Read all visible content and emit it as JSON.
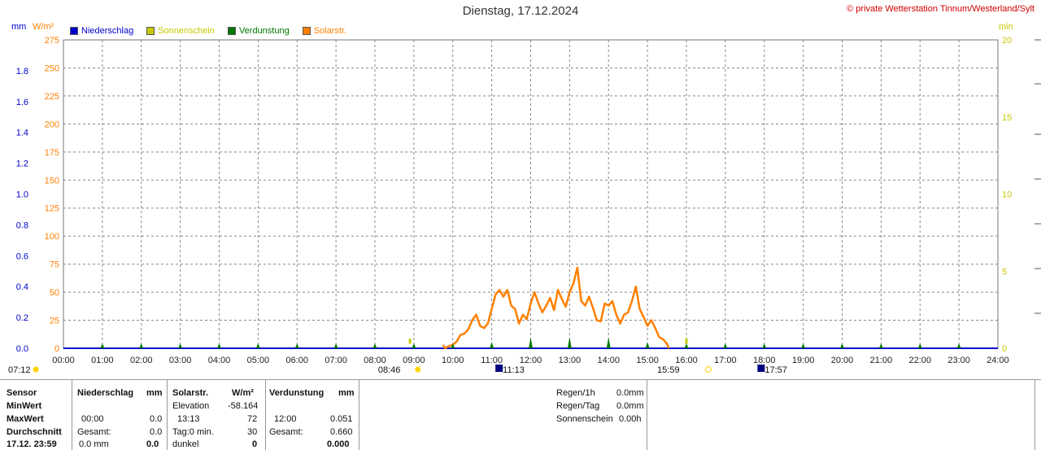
{
  "title": "Dienstag, 17.12.2024",
  "copyright": "© private Wetterstation Tinnum/Westerland/Sylt",
  "units": {
    "mm": "mm",
    "wm2": "W/m²",
    "min": "min"
  },
  "colors": {
    "niederschlag": "#0000cc",
    "sonnenschein": "#c8c800",
    "verdunstung": "#007700",
    "solar": "#ff8000",
    "grid": "#888888",
    "axis_mm": "#0000cc",
    "axis_wm2": "#ff8000",
    "axis_min": "#c8c800"
  },
  "legend": [
    {
      "label": "Niederschlag",
      "color": "#0000cc",
      "text_color": "#0000cc"
    },
    {
      "label": "Sonnenschein",
      "color": "#c8c800",
      "text_color": "#c8c800"
    },
    {
      "label": "Verdunstung",
      "color": "#007700",
      "text_color": "#007700"
    },
    {
      "label": "Solarstr.",
      "color": "#ff8000",
      "text_color": "#ff8000"
    }
  ],
  "chart_data": {
    "type": "line",
    "title": "Dienstag, 17.12.2024",
    "x_ticks": [
      "00:00",
      "01:00",
      "02:00",
      "03:00",
      "04:00",
      "05:00",
      "06:00",
      "07:00",
      "08:00",
      "09:00",
      "10:00",
      "11:00",
      "12:00",
      "13:00",
      "14:00",
      "15:00",
      "16:00",
      "17:00",
      "18:00",
      "19:00",
      "20:00",
      "21:00",
      "22:00",
      "23:00",
      "24:00"
    ],
    "y_left_mm": {
      "ticks": [
        "0.0",
        "0.2",
        "0.4",
        "0.6",
        "0.8",
        "1.0",
        "1.2",
        "1.4",
        "1.6",
        "1.8"
      ],
      "range": [
        0,
        2.0
      ]
    },
    "y_left_wm2": {
      "ticks": [
        "0",
        "25",
        "50",
        "75",
        "100",
        "125",
        "150",
        "175",
        "200",
        "225",
        "250",
        "275"
      ],
      "range": [
        0,
        275
      ]
    },
    "y_right_min": {
      "ticks": [
        "0",
        "5",
        "10",
        "15",
        "20"
      ],
      "range": [
        0,
        20
      ]
    },
    "series": [
      {
        "name": "Solarstr.",
        "unit": "W/m²",
        "x_hours": [
          9.75,
          9.8,
          9.9,
          10.0,
          10.1,
          10.2,
          10.3,
          10.4,
          10.5,
          10.6,
          10.7,
          10.8,
          10.9,
          11.0,
          11.1,
          11.2,
          11.3,
          11.4,
          11.5,
          11.6,
          11.7,
          11.8,
          11.9,
          12.0,
          12.1,
          12.2,
          12.3,
          12.4,
          12.5,
          12.6,
          12.7,
          12.8,
          12.9,
          13.0,
          13.1,
          13.2,
          13.3,
          13.4,
          13.5,
          13.6,
          13.7,
          13.8,
          13.9,
          14.0,
          14.1,
          14.2,
          14.3,
          14.4,
          14.5,
          14.6,
          14.7,
          14.8,
          14.9,
          15.0,
          15.1,
          15.2,
          15.3,
          15.4,
          15.5,
          15.55
        ],
        "values": [
          3,
          0,
          2,
          3,
          6,
          12,
          13,
          17,
          25,
          30,
          20,
          18,
          22,
          35,
          48,
          52,
          46,
          52,
          38,
          35,
          22,
          30,
          26,
          40,
          50,
          40,
          32,
          38,
          45,
          34,
          52,
          44,
          37,
          50,
          58,
          72,
          42,
          38,
          46,
          36,
          25,
          24,
          40,
          38,
          42,
          30,
          22,
          30,
          32,
          42,
          55,
          35,
          28,
          20,
          25,
          18,
          10,
          8,
          4,
          0
        ]
      },
      {
        "name": "Verdunstung",
        "unit": "mm",
        "x_hours": [
          1,
          2,
          3,
          4,
          5,
          6,
          7,
          8,
          9,
          10,
          11,
          12,
          13,
          14,
          15,
          16,
          17,
          18,
          19,
          20,
          21,
          22,
          23
        ],
        "values": [
          0.01,
          0.01,
          0.01,
          0.01,
          0.01,
          0.01,
          0.01,
          0.01,
          0.01,
          0.01,
          0.02,
          0.05,
          0.05,
          0.05,
          0.02,
          0.01,
          0.01,
          0.01,
          0.01,
          0.01,
          0.01,
          0.01,
          0.01
        ]
      },
      {
        "name": "Sonnenschein",
        "unit": "min",
        "x_hours": [
          8.9,
          16.0
        ],
        "values": [
          0.3,
          0.3
        ]
      }
    ]
  },
  "sun_events": [
    {
      "label": "07:12",
      "hour": -0.9,
      "kind": "sunrise"
    },
    {
      "label": "08:46",
      "hour": 8.77,
      "kind": "sunrise"
    },
    {
      "label": "11:13",
      "hour": 11.22,
      "kind": "moon"
    },
    {
      "label": "15:59",
      "hour": 15.98,
      "kind": "sunset"
    },
    {
      "label": "17:57",
      "hour": 17.95,
      "kind": "moon"
    }
  ],
  "table": {
    "sensor": {
      "h": "Sensor",
      "min": "MinWert",
      "max": "MaxWert",
      "avg": "Durchschnitt",
      "date": "17.12. 23:59"
    },
    "niederschlag": {
      "h": "Niederschlag",
      "unit": "mm",
      "max_time": "00:00",
      "max_val": "0.0",
      "gesamt_label": "Gesamt:",
      "gesamt_val": "0.0",
      "last_l": "0.0 mm",
      "last_r": "0.0"
    },
    "solar": {
      "h": "Solarstr.",
      "unit": "W/m²",
      "elev_l": "Elevation",
      "elev_v": "-58.164",
      "max_time": "13:13",
      "max_val": "72",
      "tag_l": "Tag:0 min.",
      "tag_v": "30",
      "dunkel_l": "dunkel",
      "dunkel_v": "0"
    },
    "verd": {
      "h": "Verdunstung",
      "unit": "mm",
      "max_time": "12:00",
      "max_val": "0.051",
      "gesamt_label": "Gesamt:",
      "gesamt_val": "0.660",
      "last_v": "0.000"
    },
    "rain": {
      "r1h_l": "Regen/1h",
      "r1h_v": "0.0mm",
      "rtag_l": "Regen/Tag",
      "rtag_v": "0.0mm",
      "sun_l": "Sonnenschein",
      "sun_v": "0.00h"
    }
  }
}
